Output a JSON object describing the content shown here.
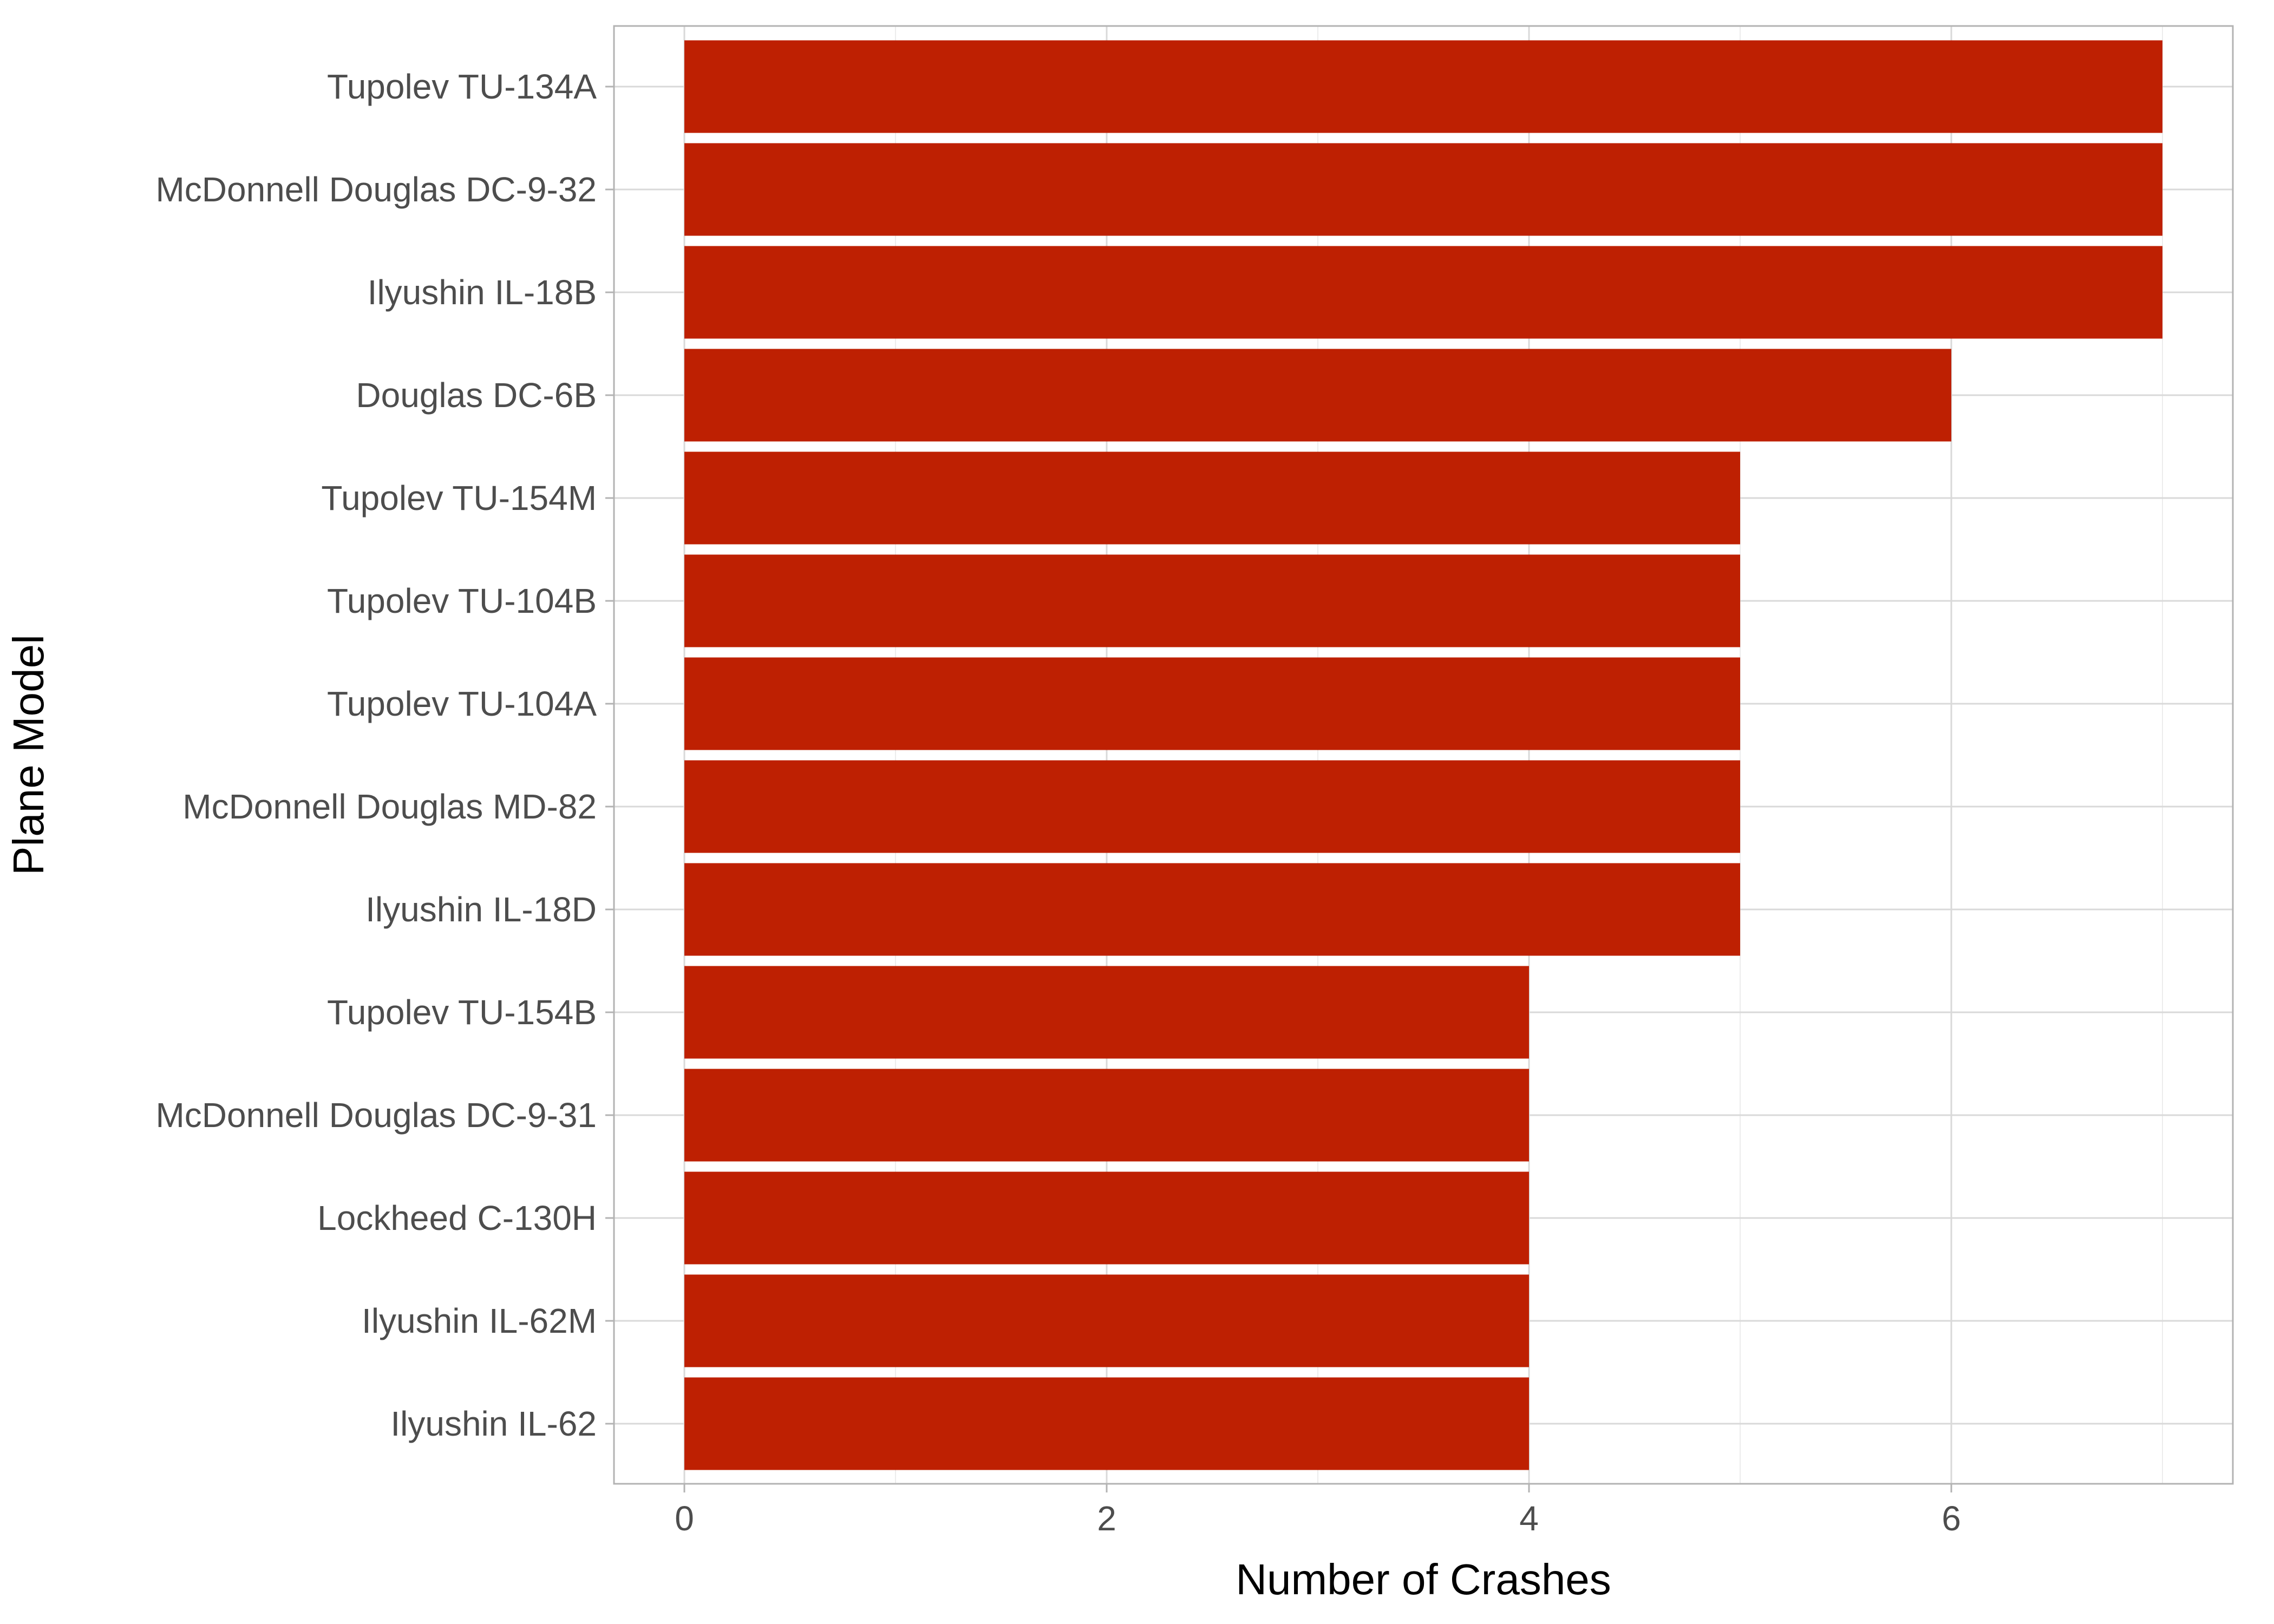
{
  "chart_data": {
    "type": "bar",
    "orientation": "horizontal",
    "title": "",
    "xlabel": "Number of Crashes",
    "ylabel": "Plane Model",
    "categories": [
      "Tupolev TU-134A",
      "McDonnell Douglas DC-9-32",
      "Ilyushin IL-18B",
      "Douglas DC-6B",
      "Tupolev TU-154M",
      "Tupolev TU-104B",
      "Tupolev TU-104A",
      "McDonnell Douglas MD-82",
      "Ilyushin IL-18D",
      "Tupolev TU-154B",
      "McDonnell Douglas DC-9-31",
      "Lockheed C-130H",
      "Ilyushin IL-62M",
      "Ilyushin IL-62"
    ],
    "values": [
      7,
      7,
      7,
      6,
      5,
      5,
      5,
      5,
      5,
      4,
      4,
      4,
      4,
      4
    ],
    "xlim": [
      0,
      7
    ],
    "xticks": [
      0,
      2,
      4,
      6
    ],
    "xtick_labels": [
      "0",
      "2",
      "4",
      "6"
    ],
    "grid": true,
    "bar_color": "#BE2002"
  }
}
